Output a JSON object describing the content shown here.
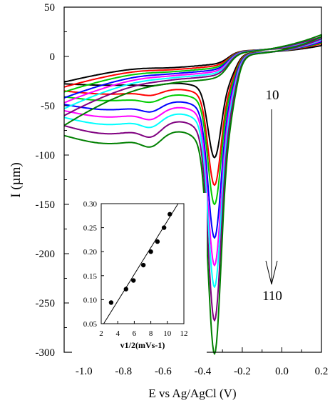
{
  "chart_data": [
    {
      "type": "line",
      "xlabel": "E vs Ag/AgCl (V)",
      "ylabel": "I (µm)",
      "xlim": [
        -1.1,
        0.2
      ],
      "ylim": [
        -300,
        50
      ],
      "xticks": [
        "-1.0",
        "-0.8",
        "-0.6",
        "-0.4",
        "-0.2",
        "0.0",
        "0.2"
      ],
      "yticks": [
        "50",
        "0",
        "-50",
        "-100",
        "-150",
        "-200",
        "-250",
        "-300"
      ],
      "annotation_start": "10",
      "annotation_end": "110",
      "series": [
        {
          "color": "#000000",
          "peak_E": -0.34,
          "peak_I": -92,
          "wave2_E": -0.67,
          "wave2_I": -30,
          "start_I": -26,
          "back_I": -8,
          "end_I": 11,
          "plateau_I": 4.0
        },
        {
          "color": "#ff0000",
          "peak_E": -0.34,
          "peak_I": -120,
          "wave2_E": -0.67,
          "wave2_I": -40,
          "start_I": -31,
          "back_I": -10,
          "end_I": 13,
          "plateau_I": 3.8
        },
        {
          "color": "#00cc00",
          "peak_E": -0.34,
          "peak_I": -138,
          "wave2_E": -0.67,
          "wave2_I": -47,
          "start_I": -36,
          "back_I": -12,
          "end_I": 14,
          "plateau_I": 3.6
        },
        {
          "color": "#0000ff",
          "peak_E": -0.34,
          "peak_I": -171,
          "wave2_E": -0.67,
          "wave2_I": -57,
          "start_I": -42,
          "back_I": -14,
          "end_I": 15,
          "plateau_I": 3.4
        },
        {
          "color": "#ff00ff",
          "peak_E": -0.34,
          "peak_I": -198,
          "wave2_E": -0.67,
          "wave2_I": -65,
          "start_I": -47,
          "back_I": -16,
          "end_I": 16,
          "plateau_I": 3.2
        },
        {
          "color": "#00ffff",
          "peak_E": -0.34,
          "peak_I": -218,
          "wave2_E": -0.67,
          "wave2_I": -73,
          "start_I": -53,
          "back_I": -18,
          "end_I": 17,
          "plateau_I": 3.0
        },
        {
          "color": "#800080",
          "peak_E": -0.34,
          "peak_I": -250,
          "wave2_E": -0.67,
          "wave2_I": -83,
          "start_I": -60,
          "back_I": -20,
          "end_I": 18,
          "plateau_I": 2.8
        },
        {
          "color": "#008000",
          "peak_E": -0.34,
          "peak_I": -279,
          "wave2_E": -0.67,
          "wave2_I": -93,
          "start_I": -70,
          "back_I": -23,
          "end_I": 20,
          "plateau_I": 2.6
        }
      ]
    },
    {
      "type": "scatter",
      "xlabel": "v1/2(mVs-1)",
      "xlim": [
        2,
        12
      ],
      "ylim": [
        0.05,
        0.3
      ],
      "xticks": [
        "2",
        "4",
        "6",
        "8",
        "10",
        "12"
      ],
      "yticks": [
        "0.30",
        "0.25",
        "0.20",
        "0.15",
        "0.10",
        "0.05"
      ],
      "points": [
        {
          "x": 3.2,
          "y": 0.094
        },
        {
          "x": 5.0,
          "y": 0.122
        },
        {
          "x": 5.9,
          "y": 0.14
        },
        {
          "x": 7.1,
          "y": 0.172
        },
        {
          "x": 8.0,
          "y": 0.2
        },
        {
          "x": 8.8,
          "y": 0.221
        },
        {
          "x": 9.6,
          "y": 0.25
        },
        {
          "x": 10.3,
          "y": 0.278
        }
      ],
      "fit": {
        "x": [
          2.3,
          11.3
        ],
        "y": [
          0.05,
          0.3
        ]
      }
    }
  ]
}
